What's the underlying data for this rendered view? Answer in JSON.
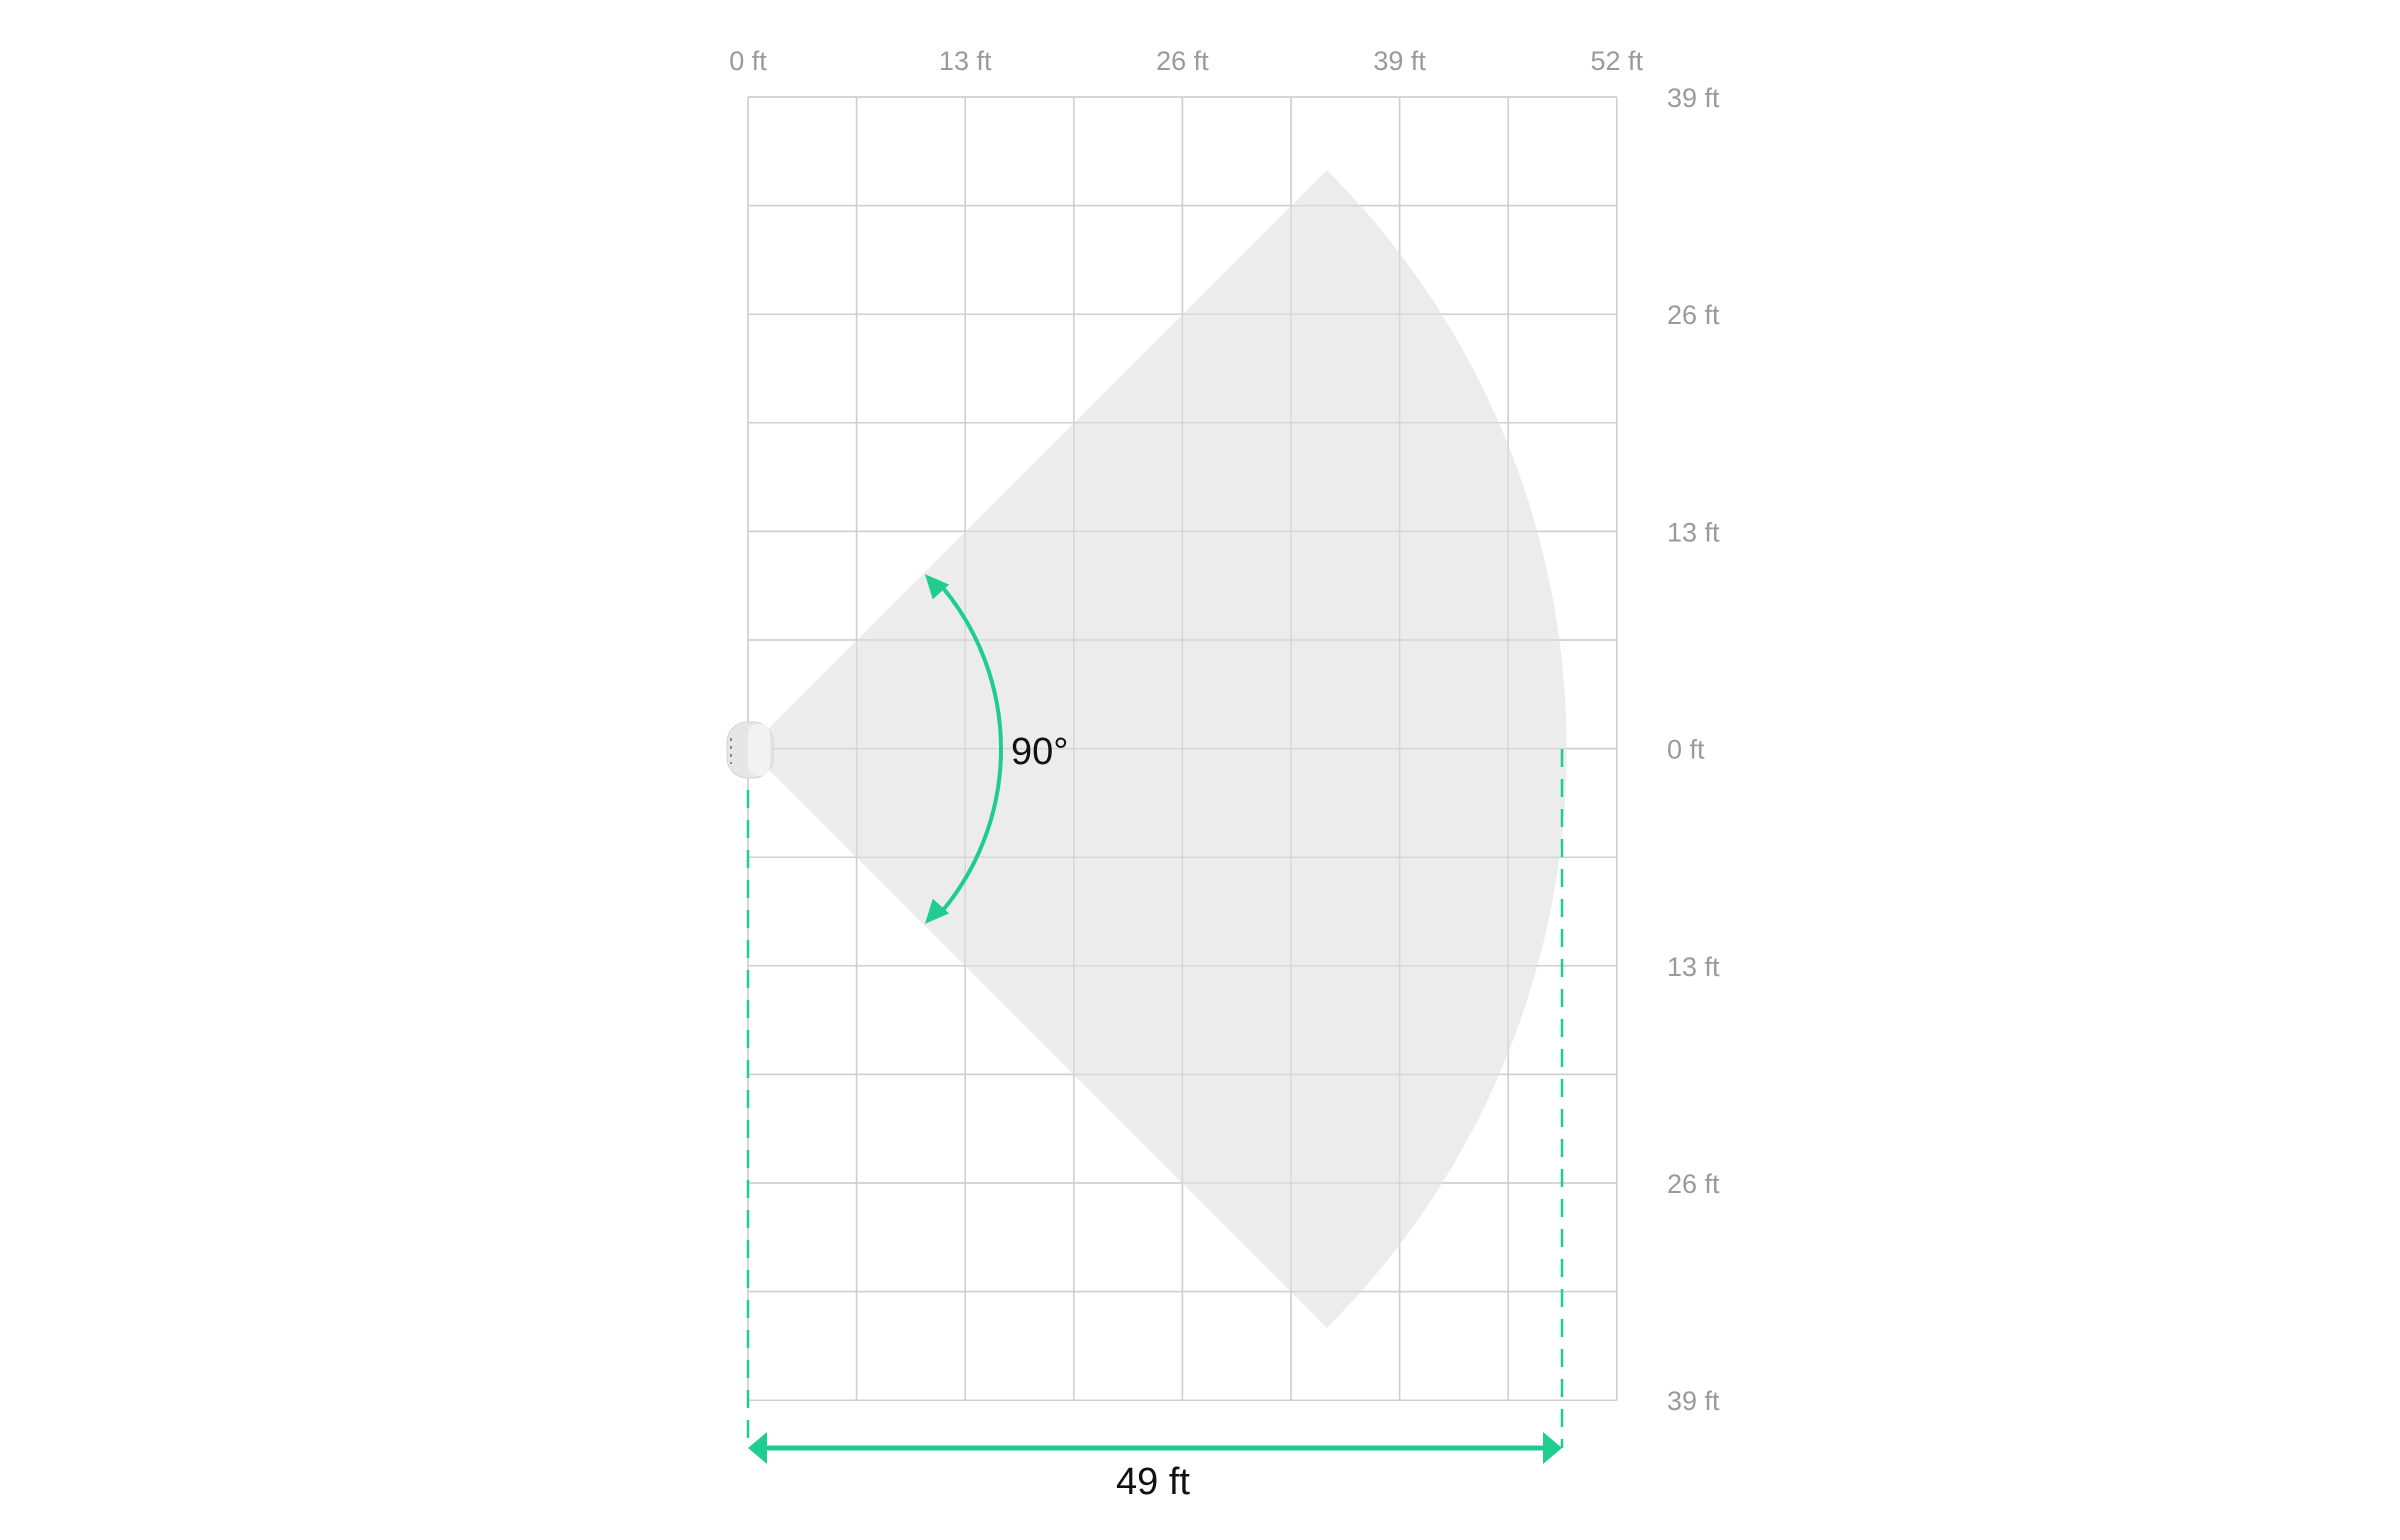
{
  "diagram": {
    "x_ticks": [
      "0 ft",
      "13 ft",
      "26 ft",
      "39 ft",
      "52 ft"
    ],
    "y_ticks": [
      "39 ft",
      "26 ft",
      "13 ft",
      "0 ft",
      "13 ft",
      "26 ft",
      "39 ft"
    ],
    "angle_label": "90°",
    "range_label": "49 ft",
    "detection_angle_deg": 90,
    "detection_range_ft": 49,
    "grid_step_ft": 6.5,
    "colors": {
      "accent": "#1fce8f",
      "zone": "#ececec",
      "grid": "#cfcfcf",
      "tick_text": "#9a9a9a",
      "device": "#e4e4e4"
    },
    "device_icon": "motion-detector-icon"
  }
}
